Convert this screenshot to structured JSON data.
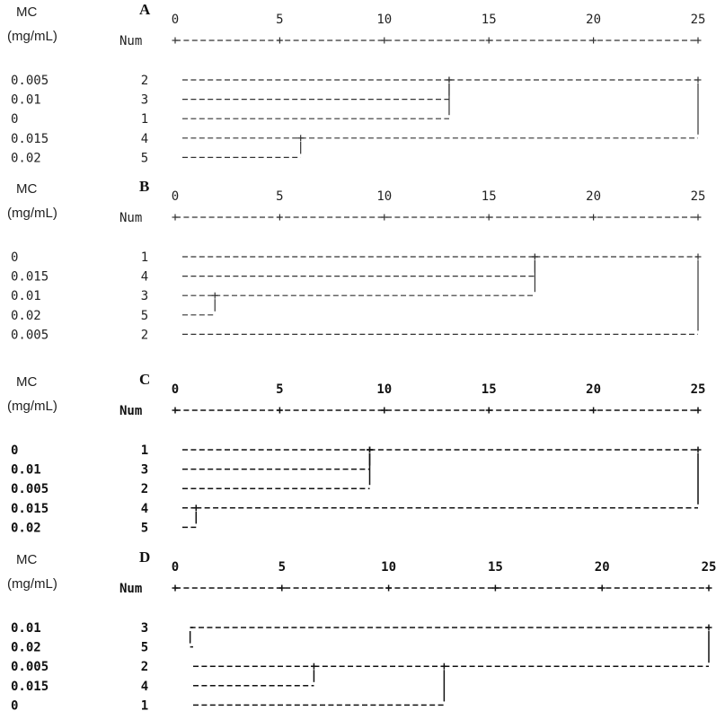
{
  "header": {
    "mc_label": "MC",
    "unit_label": "(mg/mL)",
    "num_label": "Num"
  },
  "axis_ticks": [
    "0",
    "5",
    "10",
    "15",
    "20",
    "25"
  ],
  "panels": [
    {
      "letter": "A",
      "bold": false,
      "rows": [
        {
          "mc": "0.005",
          "num": "2"
        },
        {
          "mc": "0.01",
          "num": "3"
        },
        {
          "mc": "0",
          "num": "1"
        },
        {
          "mc": "0.015",
          "num": "4"
        },
        {
          "mc": "0.02",
          "num": "5"
        }
      ],
      "joins": [
        {
          "a": 0,
          "b": 1,
          "d": 13.1
        },
        {
          "a": 3,
          "b": 4,
          "d": 6.0
        },
        {
          "a": 0,
          "b": 2,
          "d": 13.1
        },
        {
          "a": 0,
          "b": 3,
          "d": 25
        }
      ]
    },
    {
      "letter": "B",
      "bold": false,
      "rows": [
        {
          "mc": "0",
          "num": "1"
        },
        {
          "mc": "0.015",
          "num": "4"
        },
        {
          "mc": "0.01",
          "num": "3"
        },
        {
          "mc": "0.02",
          "num": "5"
        },
        {
          "mc": "0.005",
          "num": "2"
        }
      ],
      "joins": [
        {
          "a": 0,
          "b": 1,
          "d": 17.2
        },
        {
          "a": 2,
          "b": 3,
          "d": 1.9
        },
        {
          "a": 0,
          "b": 2,
          "d": 17.2
        },
        {
          "a": 0,
          "b": 4,
          "d": 25
        }
      ]
    },
    {
      "letter": "C",
      "bold": true,
      "rows": [
        {
          "mc": "0",
          "num": "1"
        },
        {
          "mc": "0.01",
          "num": "3"
        },
        {
          "mc": "0.005",
          "num": "2"
        },
        {
          "mc": "0.015",
          "num": "4"
        },
        {
          "mc": "0.02",
          "num": "5"
        }
      ],
      "joins": [
        {
          "a": 0,
          "b": 1,
          "d": 9.3
        },
        {
          "a": 0,
          "b": 2,
          "d": 9.3
        },
        {
          "a": 3,
          "b": 4,
          "d": 1.0
        },
        {
          "a": 0,
          "b": 3,
          "d": 25
        }
      ]
    },
    {
      "letter": "D",
      "bold": true,
      "rows": [
        {
          "mc": "0.01",
          "num": "3"
        },
        {
          "mc": "0.02",
          "num": "5"
        },
        {
          "mc": "0.005",
          "num": "2"
        },
        {
          "mc": "0.015",
          "num": "4"
        },
        {
          "mc": "0",
          "num": "1"
        }
      ],
      "joins": [
        {
          "a": 0,
          "b": 1,
          "d": 0.7
        },
        {
          "a": 2,
          "b": 3,
          "d": 6.5
        },
        {
          "a": 2,
          "b": 4,
          "d": 12.6
        },
        {
          "a": 0,
          "b": 2,
          "d": 25
        }
      ]
    }
  ]
}
